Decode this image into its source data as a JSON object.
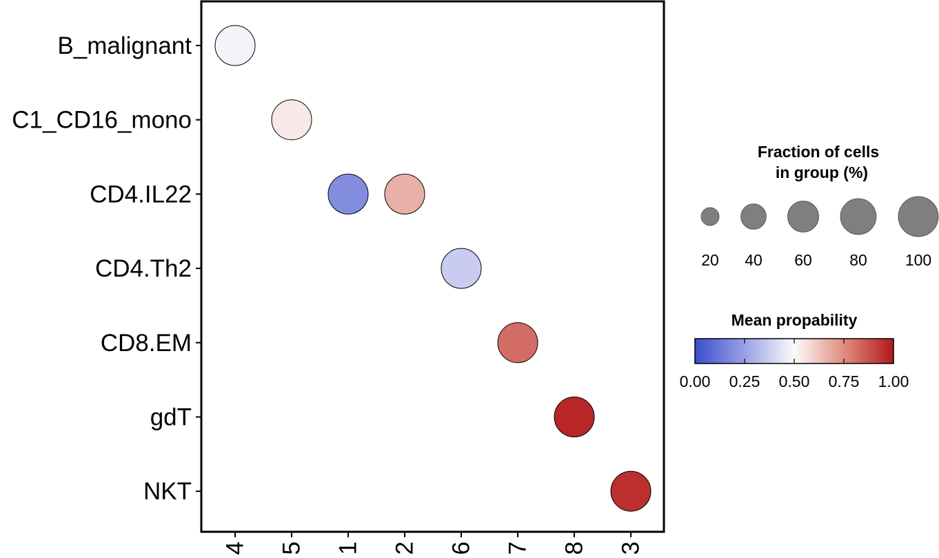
{
  "chart_data": {
    "type": "dotplot",
    "title": "",
    "xlabel": "",
    "ylabel": "",
    "x_categories": [
      "4",
      "5",
      "1",
      "2",
      "6",
      "7",
      "8",
      "3"
    ],
    "y_categories": [
      "B_malignant",
      "C1_CD16_mono",
      "CD4.IL22",
      "CD4.Th2",
      "CD8.EM",
      "gdT",
      "NKT"
    ],
    "points": [
      {
        "y": "B_malignant",
        "x": "4",
        "fraction": 100,
        "mean_probability": 0.48
      },
      {
        "y": "C1_CD16_mono",
        "x": "5",
        "fraction": 100,
        "mean_probability": 0.54
      },
      {
        "y": "CD4.IL22",
        "x": "1",
        "fraction": 100,
        "mean_probability": 0.19
      },
      {
        "y": "CD4.IL22",
        "x": "2",
        "fraction": 100,
        "mean_probability": 0.67
      },
      {
        "y": "CD4.Th2",
        "x": "6",
        "fraction": 100,
        "mean_probability": 0.37
      },
      {
        "y": "CD8.EM",
        "x": "7",
        "fraction": 100,
        "mean_probability": 0.82
      },
      {
        "y": "gdT",
        "x": "8",
        "fraction": 100,
        "mean_probability": 0.97
      },
      {
        "y": "NKT",
        "x": "3",
        "fraction": 100,
        "mean_probability": 0.95
      }
    ],
    "size_legend": {
      "title_line1": "Fraction of cells",
      "title_line2": "in group (%)",
      "values": [
        20,
        40,
        60,
        80,
        100
      ],
      "labels": [
        "20",
        "40",
        "60",
        "80",
        "100"
      ],
      "color": "#7f7f7f"
    },
    "color_legend": {
      "title": "Mean propability",
      "range": [
        0,
        1
      ],
      "ticks": [
        0.0,
        0.25,
        0.5,
        0.75,
        1.0
      ],
      "tick_labels": [
        "0.00",
        "0.25",
        "0.50",
        "0.75",
        "1.00"
      ],
      "stops": [
        {
          "value": 0.0,
          "color": "#3a4fcc"
        },
        {
          "value": 0.25,
          "color": "#9aa0e6"
        },
        {
          "value": 0.5,
          "color": "#fbfbfb"
        },
        {
          "value": 0.75,
          "color": "#e08c80"
        },
        {
          "value": 1.0,
          "color": "#b2181b"
        }
      ]
    },
    "legend_position": "right",
    "grid": false
  }
}
